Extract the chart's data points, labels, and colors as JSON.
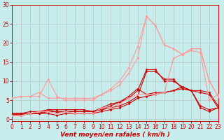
{
  "background_color": "#c8ecec",
  "grid_color": "#b0b0b0",
  "x_label": "Vent moyen/en rafales ( km/h )",
  "x_ticks": [
    0,
    1,
    2,
    3,
    4,
    5,
    6,
    7,
    8,
    9,
    10,
    11,
    12,
    13,
    14,
    15,
    16,
    17,
    18,
    19,
    20,
    21,
    22,
    23
  ],
  "y_ticks": [
    0,
    5,
    10,
    15,
    20,
    25,
    30
  ],
  "ylim": [
    -0.5,
    30
  ],
  "xlim": [
    0,
    23
  ],
  "lines": [
    {
      "x": [
        0,
        1,
        2,
        3,
        4,
        5,
        6,
        7,
        8,
        9,
        10,
        11,
        12,
        13,
        14,
        15,
        16,
        17,
        18,
        19,
        20,
        21,
        22,
        23
      ],
      "y": [
        1.5,
        1.5,
        1.5,
        1.5,
        2.0,
        2.0,
        2.0,
        2.0,
        2.0,
        2.0,
        2.5,
        3.0,
        3.5,
        4.5,
        6.0,
        12.5,
        12.5,
        10.5,
        10.5,
        8.0,
        7.5,
        3.0,
        2.0,
        3.0
      ],
      "color": "#cc0000",
      "marker": "D",
      "markersize": 1.8,
      "linewidth": 0.8
    },
    {
      "x": [
        0,
        1,
        2,
        3,
        4,
        5,
        6,
        7,
        8,
        9,
        10,
        11,
        12,
        13,
        14,
        15,
        16,
        17,
        18,
        19,
        20,
        21,
        22,
        23
      ],
      "y": [
        1.5,
        1.5,
        2.0,
        2.0,
        2.5,
        2.5,
        2.5,
        2.5,
        2.5,
        2.0,
        3.0,
        4.0,
        4.5,
        5.5,
        7.5,
        13.0,
        13.0,
        10.0,
        10.0,
        8.5,
        7.5,
        3.5,
        2.5,
        3.0
      ],
      "color": "#cc0000",
      "marker": "D",
      "markersize": 1.8,
      "linewidth": 0.8
    },
    {
      "x": [
        0,
        1,
        2,
        3,
        4,
        5,
        6,
        7,
        8,
        9,
        10,
        11,
        12,
        13,
        14,
        15,
        16,
        17,
        18,
        19,
        20,
        21,
        22,
        23
      ],
      "y": [
        1.0,
        1.0,
        1.5,
        1.5,
        1.5,
        1.0,
        1.5,
        1.5,
        1.5,
        1.5,
        2.0,
        2.5,
        3.0,
        4.0,
        5.5,
        6.0,
        6.5,
        7.0,
        7.5,
        8.0,
        7.5,
        7.0,
        6.5,
        3.0
      ],
      "color": "#cc0000",
      "marker": "D",
      "markersize": 1.8,
      "linewidth": 0.8
    },
    {
      "x": [
        0,
        1,
        2,
        3,
        4,
        5,
        6,
        7,
        8,
        9,
        10,
        11,
        12,
        13,
        14,
        15,
        16,
        17,
        18,
        19,
        20,
        21,
        22,
        23
      ],
      "y": [
        1.2,
        1.3,
        1.5,
        1.5,
        2.5,
        1.8,
        2.0,
        2.0,
        2.0,
        2.0,
        2.5,
        3.5,
        4.5,
        6.0,
        8.0,
        6.5,
        7.0,
        7.0,
        7.5,
        8.5,
        7.5,
        7.5,
        7.0,
        3.5
      ],
      "color": "#cc0000",
      "marker": "D",
      "markersize": 1.8,
      "linewidth": 0.8
    },
    {
      "x": [
        0,
        1,
        2,
        3,
        4,
        5,
        6,
        7,
        8,
        9,
        10,
        11,
        12,
        13,
        14,
        15,
        16,
        17,
        18,
        19,
        20,
        21,
        22,
        23
      ],
      "y": [
        5.5,
        6.0,
        6.0,
        7.0,
        5.5,
        5.5,
        5.5,
        5.5,
        5.5,
        5.5,
        6.5,
        8.0,
        10.0,
        13.5,
        19.0,
        27.0,
        24.5,
        19.5,
        18.5,
        17.0,
        18.5,
        18.5,
        10.0,
        6.0
      ],
      "color": "#ff9999",
      "marker": "D",
      "markersize": 1.8,
      "linewidth": 0.8
    },
    {
      "x": [
        0,
        1,
        2,
        3,
        4,
        5,
        6,
        7,
        8,
        9,
        10,
        11,
        12,
        13,
        14,
        15,
        16,
        17,
        18,
        19,
        20,
        21,
        22,
        23
      ],
      "y": [
        5.5,
        6.0,
        6.0,
        6.0,
        10.5,
        6.0,
        5.0,
        5.0,
        5.0,
        5.0,
        6.5,
        7.5,
        9.0,
        12.0,
        16.0,
        27.0,
        24.5,
        19.5,
        18.5,
        17.0,
        18.5,
        18.5,
        10.0,
        6.0
      ],
      "color": "#ff9999",
      "marker": "D",
      "markersize": 1.8,
      "linewidth": 0.8
    },
    {
      "x": [
        0,
        1,
        2,
        3,
        4,
        5,
        6,
        7,
        8,
        9,
        10,
        11,
        12,
        13,
        14,
        15,
        16,
        17,
        18,
        19,
        20,
        21,
        22,
        23
      ],
      "y": [
        1.0,
        1.0,
        1.5,
        2.0,
        2.0,
        1.5,
        2.0,
        1.5,
        1.5,
        1.5,
        3.0,
        3.0,
        4.0,
        5.5,
        6.5,
        6.5,
        6.5,
        7.0,
        16.0,
        17.0,
        18.0,
        17.5,
        5.0,
        6.5
      ],
      "color": "#ff9999",
      "marker": "D",
      "markersize": 1.8,
      "linewidth": 0.8
    }
  ],
  "arrow_symbols": [
    "↓",
    "↘",
    "↘",
    "↘",
    "↓",
    "↘",
    "↘",
    "→",
    "↘",
    "↓",
    "↑",
    "←",
    "↖",
    "←",
    "↖",
    "↑",
    "↖",
    "↘",
    "↓",
    "↘",
    "↘",
    "↘",
    "↙",
    "↙"
  ],
  "label_fontsize": 5.5,
  "xlabel_fontsize": 6.5,
  "ylabel_fontsize": 5.5
}
